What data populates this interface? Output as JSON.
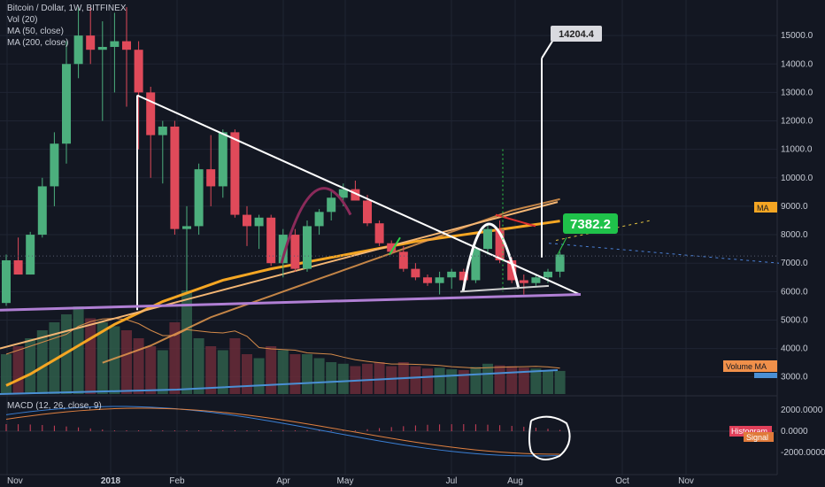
{
  "legend": {
    "symbol": "Bitcoin / Dollar, 1W, BITFINEX",
    "vol": "Vol (20)",
    "ma50": "MA (50, close)",
    "ma200": "MA (200, close)"
  },
  "macd_legend": "MACD (12, 26, close, 9)",
  "tags": {
    "ma": "MA",
    "volume_ma": "Volume MA",
    "histogram": "Histogram",
    "signal": "Signal"
  },
  "callouts": {
    "target": "14204.4",
    "current": "7382.2"
  },
  "colors": {
    "background": "#131722",
    "up": "#4caf7d",
    "down": "#e04a5a",
    "ma50": "#f5a623",
    "ma200": "#f0a050",
    "trendline_white": "#ffffff",
    "support_purple": "#b07fd4",
    "current_label": "#1fc24a"
  },
  "chart_data": [
    {
      "type": "candlestick",
      "title": "Bitcoin / Dollar, 1W, BITFINEX",
      "x_tick_labels": [
        "Nov",
        "2018",
        "Feb",
        "Apr",
        "May",
        "Jul",
        "Aug",
        "Oct",
        "Nov"
      ],
      "y_tick_labels": [
        "15000.0",
        "14000.0",
        "13000.0",
        "12000.0",
        "11000.0",
        "10000.0",
        "9000.0",
        "8000.0",
        "7000.0",
        "6000.0",
        "5000.0",
        "4000.0",
        "3000.0"
      ],
      "ylim": [
        2400,
        16000
      ],
      "candles": [
        {
          "o": 5600,
          "h": 7300,
          "l": 5500,
          "c": 7100
        },
        {
          "o": 7100,
          "h": 7900,
          "l": 6700,
          "c": 6600
        },
        {
          "o": 6600,
          "h": 8100,
          "l": 6600,
          "c": 8000
        },
        {
          "o": 8000,
          "h": 10000,
          "l": 7900,
          "c": 9700
        },
        {
          "o": 9700,
          "h": 11600,
          "l": 9000,
          "c": 11200
        },
        {
          "o": 11200,
          "h": 14800,
          "l": 10500,
          "c": 14000
        },
        {
          "o": 14000,
          "h": 16000,
          "l": 13500,
          "c": 15000
        },
        {
          "o": 15000,
          "h": 16000,
          "l": 14000,
          "c": 14500
        },
        {
          "o": 14500,
          "h": 15500,
          "l": 12000,
          "c": 14600
        },
        {
          "o": 14600,
          "h": 15800,
          "l": 13000,
          "c": 14800
        },
        {
          "o": 14800,
          "h": 16000,
          "l": 12500,
          "c": 14500
        },
        {
          "o": 14500,
          "h": 14800,
          "l": 11000,
          "c": 13000
        },
        {
          "o": 13000,
          "h": 13200,
          "l": 10000,
          "c": 11500
        },
        {
          "o": 11500,
          "h": 12000,
          "l": 9800,
          "c": 11800
        },
        {
          "o": 11800,
          "h": 12000,
          "l": 8000,
          "c": 8200
        },
        {
          "o": 8200,
          "h": 9000,
          "l": 6000,
          "c": 8300
        },
        {
          "o": 8300,
          "h": 10500,
          "l": 8000,
          "c": 10300
        },
        {
          "o": 10300,
          "h": 11500,
          "l": 9000,
          "c": 9700
        },
        {
          "o": 9700,
          "h": 11700,
          "l": 9300,
          "c": 11600
        },
        {
          "o": 11600,
          "h": 11700,
          "l": 8600,
          "c": 8700
        },
        {
          "o": 8700,
          "h": 9000,
          "l": 7600,
          "c": 8300
        },
        {
          "o": 8300,
          "h": 8700,
          "l": 7500,
          "c": 8600
        },
        {
          "o": 8600,
          "h": 8700,
          "l": 6900,
          "c": 7000
        },
        {
          "o": 7000,
          "h": 8200,
          "l": 6500,
          "c": 8000
        },
        {
          "o": 8000,
          "h": 8200,
          "l": 6700,
          "c": 6800
        },
        {
          "o": 6800,
          "h": 8500,
          "l": 6700,
          "c": 8300
        },
        {
          "o": 8300,
          "h": 8900,
          "l": 8000,
          "c": 8800
        },
        {
          "o": 8800,
          "h": 9600,
          "l": 8500,
          "c": 9300
        },
        {
          "o": 9300,
          "h": 9800,
          "l": 9000,
          "c": 9600
        },
        {
          "o": 9600,
          "h": 9900,
          "l": 9200,
          "c": 9200
        },
        {
          "o": 9200,
          "h": 9400,
          "l": 8300,
          "c": 8400
        },
        {
          "o": 8400,
          "h": 8500,
          "l": 7600,
          "c": 7700
        },
        {
          "o": 7700,
          "h": 7800,
          "l": 7300,
          "c": 7400
        },
        {
          "o": 7400,
          "h": 7600,
          "l": 6700,
          "c": 6800
        },
        {
          "o": 6800,
          "h": 7000,
          "l": 6400,
          "c": 6500
        },
        {
          "o": 6500,
          "h": 6600,
          "l": 6200,
          "c": 6300
        },
        {
          "o": 6300,
          "h": 6700,
          "l": 5900,
          "c": 6500
        },
        {
          "o": 6500,
          "h": 6800,
          "l": 6100,
          "c": 6700
        },
        {
          "o": 6700,
          "h": 6800,
          "l": 6300,
          "c": 6400
        },
        {
          "o": 6400,
          "h": 7600,
          "l": 6300,
          "c": 7500
        },
        {
          "o": 7500,
          "h": 8400,
          "l": 7300,
          "c": 8200
        },
        {
          "o": 8200,
          "h": 8500,
          "l": 7000,
          "c": 7100
        },
        {
          "o": 7100,
          "h": 7200,
          "l": 6300,
          "c": 6400
        },
        {
          "o": 6400,
          "h": 6600,
          "l": 5900,
          "c": 6300
        },
        {
          "o": 6300,
          "h": 6600,
          "l": 6200,
          "c": 6500
        },
        {
          "o": 6500,
          "h": 6800,
          "l": 6300,
          "c": 6700
        },
        {
          "o": 6700,
          "h": 7400,
          "l": 6500,
          "c": 7300
        }
      ],
      "volume": [
        {
          "v": 500,
          "up": true
        },
        {
          "v": 600,
          "up": false
        },
        {
          "v": 700,
          "up": true
        },
        {
          "v": 800,
          "up": true
        },
        {
          "v": 900,
          "up": true
        },
        {
          "v": 1000,
          "up": true
        },
        {
          "v": 1100,
          "up": true
        },
        {
          "v": 950,
          "up": false
        },
        {
          "v": 900,
          "up": true
        },
        {
          "v": 850,
          "up": true
        },
        {
          "v": 800,
          "up": false
        },
        {
          "v": 700,
          "up": false
        },
        {
          "v": 600,
          "up": false
        },
        {
          "v": 550,
          "up": true
        },
        {
          "v": 900,
          "up": false
        },
        {
          "v": 1300,
          "up": true
        },
        {
          "v": 700,
          "up": true
        },
        {
          "v": 600,
          "up": false
        },
        {
          "v": 550,
          "up": true
        },
        {
          "v": 700,
          "up": false
        },
        {
          "v": 500,
          "up": false
        },
        {
          "v": 450,
          "up": true
        },
        {
          "v": 600,
          "up": false
        },
        {
          "v": 550,
          "up": true
        },
        {
          "v": 500,
          "up": false
        },
        {
          "v": 500,
          "up": true
        },
        {
          "v": 450,
          "up": true
        },
        {
          "v": 400,
          "up": true
        },
        {
          "v": 380,
          "up": true
        },
        {
          "v": 350,
          "up": false
        },
        {
          "v": 380,
          "up": false
        },
        {
          "v": 400,
          "up": false
        },
        {
          "v": 350,
          "up": false
        },
        {
          "v": 400,
          "up": false
        },
        {
          "v": 350,
          "up": false
        },
        {
          "v": 320,
          "up": false
        },
        {
          "v": 330,
          "up": true
        },
        {
          "v": 310,
          "up": true
        },
        {
          "v": 300,
          "up": false
        },
        {
          "v": 340,
          "up": true
        },
        {
          "v": 380,
          "up": true
        },
        {
          "v": 360,
          "up": false
        },
        {
          "v": 350,
          "up": false
        },
        {
          "v": 330,
          "up": false
        },
        {
          "v": 320,
          "up": true
        },
        {
          "v": 300,
          "up": true
        },
        {
          "v": 290,
          "up": true
        }
      ],
      "ma50": [
        2700,
        2900,
        3100,
        3350,
        3600,
        3850,
        4100,
        4350,
        4600,
        4850,
        5050,
        5250,
        5450,
        5650,
        5800,
        5950,
        6100,
        6250,
        6400,
        6500,
        6600,
        6700,
        6800,
        6880,
        6960,
        7040,
        7120,
        7200,
        7280,
        7360,
        7440,
        7520,
        7600,
        7680,
        7760,
        7820,
        7880,
        7940,
        8000,
        8060,
        8120,
        8180,
        8240,
        8300,
        8360,
        8420,
        8480
      ],
      "ma200": [
        3500,
        3650,
        3800,
        3950,
        4100,
        4300,
        4500,
        4700,
        4900,
        5100,
        5250,
        5400,
        5550,
        5700,
        5850,
        6000,
        6150,
        6300,
        6450,
        6600,
        6750,
        6900,
        7050,
        7200,
        7350,
        7500,
        7650,
        7800,
        7950,
        8100,
        8250,
        8400,
        8550,
        8700,
        8850,
        8950,
        9050,
        9150,
        9250
      ],
      "macd_tick_labels": [
        "2000.0000",
        "0.0000",
        "-2000.0000"
      ]
    }
  ]
}
